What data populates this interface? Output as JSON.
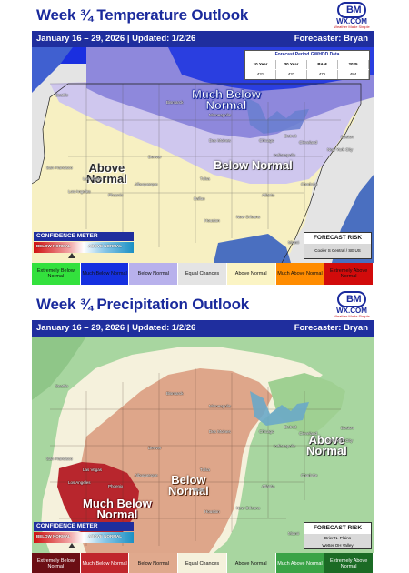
{
  "temperature": {
    "title": "Week ¾ Temperature Outlook",
    "logo": {
      "line1": "BM",
      "line2": "WX.COM",
      "tagline": "Weather Made Simple"
    },
    "date_range": "January 16 – 29, 2026",
    "updated": "Updated: 1/2/26",
    "forecaster": "Forecaster: Bryan",
    "gwhdd": {
      "title": "Forecast Period GWHDD Data",
      "headers": [
        "10 Year",
        "30 Year",
        "BAM",
        "2025"
      ],
      "values": [
        "431",
        "432",
        "475",
        "484"
      ]
    },
    "region_labels": {
      "much_below": [
        "Much Below",
        "Normal"
      ],
      "below": "Below Normal",
      "above": [
        "Above",
        "Normal"
      ]
    },
    "cities": [
      "Seattle",
      "Bismarck",
      "Minneapolis",
      "Detroit",
      "Chicago",
      "Cleveland",
      "Boston",
      "New York City",
      "Des Moines",
      "Indianapolis",
      "Denver",
      "San Francisco",
      "Las Vegas",
      "Los Angeles",
      "Phoenix",
      "Albuquerque",
      "Tulsa",
      "Charlotte",
      "Atlanta",
      "Dallas",
      "Houston",
      "New Orleans",
      "Miami"
    ],
    "confidence": {
      "title": "CONFIDENCE METER",
      "left": "BELOW NORMAL",
      "right": "ABOVE NORMAL"
    },
    "risk": {
      "title": "FORECAST RISK",
      "text": "Cooler S Central / SE US"
    },
    "legend": [
      {
        "label": "Extremely Below Normal",
        "color": "#33e13d",
        "text_color": "#111111"
      },
      {
        "label": "Much Below Normal",
        "color": "#1530e0",
        "text_color": "#111111"
      },
      {
        "label": "Below Normal",
        "color": "#b8b1ec",
        "text_color": "#111111"
      },
      {
        "label": "Equal Chances",
        "color": "#e4e4e4",
        "text_color": "#111111"
      },
      {
        "label": "Above Normal",
        "color": "#fbf4c4",
        "text_color": "#111111"
      },
      {
        "label": "Much Above Normal",
        "color": "#ff8c00",
        "text_color": "#111111"
      },
      {
        "label": "Extremely Above Normal",
        "color": "#d20b0b",
        "text_color": "#111111"
      }
    ]
  },
  "precipitation": {
    "title": "Week ¾ Precipitation Outlook",
    "logo": {
      "line1": "BM",
      "line2": "WX.COM",
      "tagline": "Weather Made Simple"
    },
    "date_range": "January 16 – 29, 2026",
    "updated": "Updated: 1/2/26",
    "forecaster": "Forecaster: Bryan",
    "region_labels": {
      "much_below": [
        "Much Below",
        "Normal"
      ],
      "below": [
        "Below",
        "Normal"
      ],
      "above": [
        "Above",
        "Normal"
      ]
    },
    "cities": [
      "Seattle",
      "Bismarck",
      "Minneapolis",
      "Detroit",
      "Chicago",
      "Cleveland",
      "Boston",
      "New York City",
      "Des Moines",
      "Indianapolis",
      "Denver",
      "San Francisco",
      "Las Vegas",
      "Los Angeles",
      "Phoenix",
      "Albuquerque",
      "Tulsa",
      "Charlotte",
      "Atlanta",
      "Dallas",
      "Houston",
      "New Orleans",
      "Miami"
    ],
    "confidence": {
      "title": "CONFIDENCE METER",
      "left": "BELOW NORMAL",
      "right": "ABOVE NORMAL"
    },
    "risk": {
      "title": "FORECAST RISK",
      "text": "Drier N. Plains\nWetter OH Valley"
    },
    "legend": [
      {
        "label": "Extremely Below Normal",
        "color": "#6b0e14",
        "text_color": "#ffffff"
      },
      {
        "label": "Much Below Normal",
        "color": "#c0262c",
        "text_color": "#ffffff"
      },
      {
        "label": "Below Normal",
        "color": "#e0a98d",
        "text_color": "#111111"
      },
      {
        "label": "Equal Chances",
        "color": "#f5f1dc",
        "text_color": "#111111"
      },
      {
        "label": "Above Normal",
        "color": "#a8d6a0",
        "text_color": "#111111"
      },
      {
        "label": "Much Above Normal",
        "color": "#39a346",
        "text_color": "#ffffff"
      },
      {
        "label": "Extremely Above Normal",
        "color": "#1b6b25",
        "text_color": "#ffffff"
      }
    ]
  }
}
